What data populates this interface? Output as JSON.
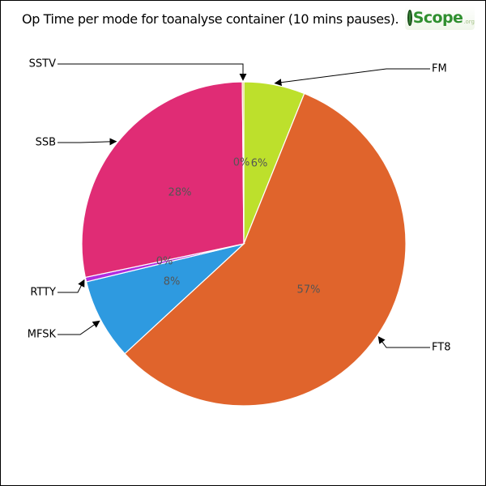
{
  "chart_data": {
    "type": "pie",
    "title": "Op Time per mode for toanalyse container (10 mins pauses).",
    "categories": [
      "FM",
      "FT8",
      "MFSK",
      "RTTY",
      "SSB",
      "SSTV"
    ],
    "values": [
      6.1,
      57.1,
      8.1,
      0.45,
      28.2,
      0.15
    ],
    "percent_labels": [
      "6%",
      "57%",
      "8%",
      "0%",
      "28%",
      "0%"
    ],
    "colors": [
      "#bde02c",
      "#e0642c",
      "#2e9ae0",
      "#b02ce0",
      "#e02c75",
      "#e0b02c"
    ],
    "start": "top, clockwise",
    "legend": "leader-line labels outside the pie"
  },
  "logo": {
    "name": "Scope",
    "suffix": ".org"
  }
}
